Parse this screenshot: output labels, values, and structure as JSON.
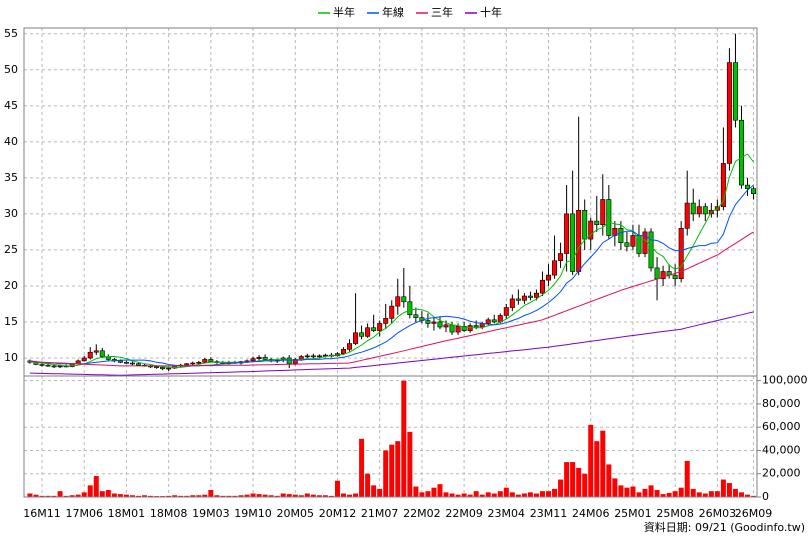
{
  "chart_data": {
    "type": "candlestick",
    "categories": [
      null,
      null,
      "16M11",
      null,
      null,
      null,
      null,
      null,
      null,
      "17M06",
      null,
      null,
      null,
      null,
      null,
      null,
      "18M01",
      null,
      null,
      null,
      null,
      null,
      null,
      "18M08",
      null,
      null,
      null,
      null,
      null,
      null,
      "19M03",
      null,
      null,
      null,
      null,
      null,
      null,
      "19M10",
      null,
      null,
      null,
      null,
      null,
      null,
      "20M05",
      null,
      null,
      null,
      null,
      null,
      null,
      "20M12",
      null,
      null,
      null,
      null,
      null,
      null,
      "21M07",
      null,
      null,
      null,
      null,
      null,
      null,
      "22M02",
      null,
      null,
      null,
      null,
      null,
      null,
      "22M09",
      null,
      null,
      null,
      null,
      null,
      null,
      "23M04",
      null,
      null,
      null,
      null,
      null,
      null,
      "23M11",
      null,
      null,
      null,
      null,
      null,
      null,
      "24M06",
      null,
      null,
      null,
      null,
      null,
      null,
      "25M01",
      null,
      null,
      null,
      null,
      null,
      null,
      "25M08",
      null,
      null,
      null,
      null,
      null,
      null,
      "26M03",
      null,
      null,
      null,
      null,
      null,
      "26M09"
    ],
    "open": [
      9.6,
      9.4,
      9.1,
      9.0,
      8.9,
      8.8,
      8.9,
      8.8,
      9.2,
      9.6,
      10.0,
      10.8,
      11.0,
      10.2,
      9.8,
      9.6,
      9.4,
      9.3,
      9.2,
      9.0,
      8.9,
      8.8,
      8.7,
      8.5,
      8.6,
      8.9,
      9.0,
      9.2,
      9.3,
      9.4,
      9.8,
      9.5,
      9.4,
      9.3,
      9.4,
      9.3,
      9.5,
      9.6,
      9.9,
      10.1,
      9.8,
      9.6,
      9.7,
      10.0,
      9.2,
      9.8,
      10.2,
      10.3,
      10.2,
      10.3,
      10.4,
      10.3,
      10.6,
      11.2,
      12.0,
      13.5,
      13.0,
      14.2,
      13.8,
      14.8,
      15.5,
      17.2,
      18.5,
      17.8,
      16.0,
      15.6,
      15.2,
      14.8,
      15.0,
      14.3,
      14.6,
      13.6,
      14.4,
      13.8,
      14.5,
      14.3,
      14.8,
      15.3,
      15.0,
      15.9,
      17.0,
      18.2,
      18.0,
      18.6,
      18.4,
      19.0,
      20.8,
      21.5,
      23.5,
      24.5,
      30.0,
      22.0,
      30.5,
      26.5,
      29.0,
      28.5,
      32.0,
      27.0,
      28.0,
      26.0,
      25.5,
      27.0,
      24.5,
      27.5,
      22.5,
      21.0,
      22.0,
      21.5,
      21.0,
      28.0,
      31.5,
      30.0,
      31.0,
      30.0,
      30.5,
      31.0,
      37.0,
      51.0,
      43.0,
      34.0,
      33.5
    ],
    "high": [
      9.8,
      9.6,
      9.3,
      9.2,
      9.1,
      9.0,
      9.1,
      9.3,
      9.8,
      10.3,
      11.5,
      11.9,
      11.4,
      10.5,
      10.0,
      9.8,
      9.6,
      9.5,
      9.4,
      9.2,
      9.1,
      9.0,
      8.9,
      8.8,
      9.0,
      9.2,
      9.3,
      9.5,
      9.6,
      10.0,
      10.1,
      9.7,
      9.6,
      9.6,
      9.6,
      9.6,
      9.8,
      10.2,
      10.4,
      10.5,
      10.0,
      9.9,
      10.2,
      10.4,
      10.0,
      10.4,
      10.6,
      10.6,
      10.5,
      10.6,
      10.7,
      10.8,
      11.5,
      12.6,
      19.0,
      14.5,
      14.8,
      16.0,
      15.2,
      17.5,
      18.0,
      21.0,
      22.5,
      20.0,
      17.0,
      16.5,
      16.2,
      15.6,
      15.8,
      15.2,
      15.0,
      14.8,
      15.0,
      14.8,
      15.2,
      15.0,
      15.6,
      16.0,
      16.2,
      17.5,
      18.8,
      19.5,
      19.0,
      19.2,
      19.5,
      22.0,
      23.0,
      27.0,
      26.0,
      34.0,
      36.0,
      43.5,
      32.0,
      29.5,
      32.5,
      35.5,
      34.0,
      29.0,
      29.0,
      27.5,
      28.5,
      28.5,
      28.0,
      28.0,
      24.0,
      22.8,
      23.0,
      23.0,
      29.0,
      36.0,
      33.5,
      32.0,
      31.5,
      31.5,
      32.0,
      42.0,
      53.0,
      55.0,
      45.0,
      35.0,
      33.8
    ],
    "low": [
      9.2,
      9.0,
      8.8,
      8.8,
      8.6,
      8.6,
      8.7,
      8.7,
      9.1,
      9.5,
      9.8,
      10.4,
      10.0,
      9.6,
      9.4,
      9.3,
      9.2,
      9.0,
      8.9,
      8.8,
      8.6,
      8.5,
      8.3,
      8.2,
      8.5,
      8.7,
      8.8,
      9.0,
      9.1,
      9.3,
      9.4,
      9.2,
      9.1,
      9.1,
      9.2,
      9.1,
      9.3,
      9.4,
      9.6,
      9.7,
      9.4,
      9.3,
      9.4,
      8.6,
      9.0,
      9.6,
      10.0,
      10.0,
      9.9,
      10.1,
      10.1,
      10.2,
      10.4,
      10.9,
      11.8,
      12.6,
      12.8,
      13.6,
      13.0,
      14.0,
      14.8,
      16.0,
      17.0,
      15.5,
      15.0,
      14.8,
      14.2,
      13.8,
      14.0,
      13.6,
      13.2,
      13.2,
      13.6,
      13.5,
      14.0,
      14.0,
      14.4,
      14.8,
      14.8,
      15.4,
      16.5,
      17.4,
      17.5,
      18.0,
      18.0,
      18.6,
      20.0,
      21.0,
      22.5,
      22.0,
      21.5,
      21.5,
      25.0,
      25.0,
      27.5,
      27.0,
      26.5,
      25.5,
      25.0,
      24.8,
      25.0,
      24.0,
      24.0,
      22.0,
      18.0,
      20.0,
      21.0,
      20.0,
      20.5,
      27.0,
      29.0,
      29.5,
      29.0,
      29.5,
      29.5,
      30.5,
      36.0,
      42.0,
      33.5,
      32.5,
      32.0
    ],
    "close": [
      9.4,
      9.1,
      9.0,
      8.9,
      8.8,
      8.9,
      8.8,
      9.2,
      9.6,
      10.0,
      10.8,
      11.0,
      10.2,
      9.8,
      9.6,
      9.4,
      9.3,
      9.2,
      9.0,
      8.9,
      8.8,
      8.7,
      8.5,
      8.6,
      8.9,
      9.0,
      9.2,
      9.3,
      9.4,
      9.8,
      9.5,
      9.4,
      9.3,
      9.4,
      9.3,
      9.5,
      9.6,
      9.9,
      10.1,
      9.8,
      9.6,
      9.7,
      10.0,
      9.2,
      9.8,
      10.2,
      10.3,
      10.2,
      10.3,
      10.4,
      10.3,
      10.6,
      11.2,
      12.0,
      13.5,
      13.0,
      14.2,
      13.8,
      14.8,
      15.5,
      17.2,
      18.5,
      17.8,
      16.0,
      15.6,
      15.2,
      14.8,
      15.0,
      14.3,
      14.6,
      13.6,
      14.4,
      13.8,
      14.5,
      14.3,
      14.8,
      15.3,
      15.0,
      15.9,
      17.0,
      18.2,
      18.0,
      18.6,
      18.4,
      19.0,
      20.8,
      21.5,
      23.5,
      24.5,
      30.0,
      22.0,
      30.5,
      26.5,
      29.0,
      28.5,
      32.0,
      27.0,
      28.0,
      26.0,
      25.5,
      27.0,
      24.5,
      27.5,
      22.5,
      21.0,
      22.0,
      21.5,
      21.0,
      28.0,
      31.5,
      30.0,
      31.0,
      30.0,
      30.5,
      31.0,
      37.0,
      51.0,
      43.0,
      34.0,
      33.5,
      32.8
    ],
    "up_color": "#ff0000",
    "down_color": "#00c000",
    "ylim": [
      7.5,
      55.8
    ],
    "yticks": [
      10,
      15,
      20,
      25,
      30,
      35,
      40,
      45,
      50,
      55
    ],
    "grid": true,
    "legend": "top",
    "series": [
      {
        "name": "半年",
        "color": "#00c000",
        "values": [
          9.5,
          9.4,
          9.3,
          9.2,
          9.1,
          9.0,
          8.9,
          8.9,
          9.0,
          9.2,
          9.5,
          9.9,
          10.1,
          10.2,
          10.2,
          10.1,
          9.9,
          9.6,
          9.4,
          9.2,
          9.1,
          8.9,
          8.8,
          8.7,
          8.7,
          8.7,
          8.8,
          8.9,
          9.1,
          9.3,
          9.4,
          9.4,
          9.4,
          9.4,
          9.4,
          9.4,
          9.4,
          9.5,
          9.6,
          9.7,
          9.7,
          9.8,
          9.9,
          9.7,
          9.7,
          9.8,
          9.9,
          9.9,
          10.0,
          10.2,
          10.3,
          10.4,
          10.5,
          10.8,
          11.3,
          11.8,
          12.4,
          12.9,
          13.6,
          14.1,
          14.8,
          15.7,
          16.3,
          16.6,
          16.8,
          16.7,
          16.4,
          15.7,
          15.2,
          14.9,
          14.6,
          14.5,
          14.3,
          14.2,
          14.2,
          14.2,
          14.5,
          14.6,
          15.0,
          15.4,
          16.0,
          16.6,
          17.3,
          17.7,
          18.2,
          18.8,
          19.4,
          20.3,
          21.4,
          23.3,
          23.6,
          25.3,
          26.4,
          27.1,
          27.8,
          28.1,
          28.9,
          28.6,
          28.5,
          27.8,
          27.7,
          26.3,
          26.4,
          25.5,
          24.6,
          24.1,
          22.9,
          22.3,
          22.7,
          24.2,
          25.6,
          27.2,
          28.7,
          30.3,
          30.7,
          31.8,
          35.1,
          37.3,
          37.8,
          38.3,
          37.2
        ]
      },
      {
        "name": "年線",
        "color": "#0050ff",
        "values": [
          9.6,
          9.5,
          9.4,
          9.3,
          9.3,
          9.2,
          9.2,
          9.2,
          9.2,
          9.2,
          9.3,
          9.4,
          9.5,
          9.6,
          9.6,
          9.7,
          9.7,
          9.7,
          9.7,
          9.7,
          9.6,
          9.4,
          9.3,
          9.1,
          9.0,
          8.9,
          8.9,
          8.9,
          8.9,
          9.0,
          9.0,
          9.1,
          9.2,
          9.2,
          9.3,
          9.4,
          9.4,
          9.5,
          9.5,
          9.6,
          9.6,
          9.6,
          9.7,
          9.7,
          9.7,
          9.7,
          9.8,
          9.8,
          9.8,
          9.9,
          9.9,
          10.0,
          10.1,
          10.3,
          10.6,
          10.8,
          11.1,
          11.4,
          11.8,
          12.2,
          12.8,
          13.5,
          14.0,
          14.5,
          14.9,
          15.2,
          15.5,
          15.6,
          15.7,
          15.8,
          15.7,
          15.6,
          15.4,
          15.1,
          14.9,
          14.8,
          14.7,
          14.6,
          14.7,
          14.9,
          15.2,
          15.5,
          15.9,
          16.2,
          16.6,
          17.1,
          17.7,
          18.4,
          19.2,
          20.4,
          21.0,
          22.1,
          23.1,
          24.0,
          24.9,
          26.0,
          26.5,
          27.1,
          27.4,
          27.6,
          27.6,
          27.0,
          27.0,
          26.4,
          26.3,
          25.9,
          25.3,
          24.9,
          24.9,
          25.2,
          25.4,
          25.6,
          25.6,
          25.9,
          26.0,
          27.2,
          29.6,
          31.3,
          32.3,
          33.3,
          34.0
        ]
      },
      {
        "name": "三年",
        "color": "#e0105a",
        "values": [
          9.5,
          9.46,
          9.42,
          9.38,
          9.34,
          9.3,
          9.26,
          9.22,
          9.18,
          9.14,
          9.1,
          9.06,
          9.02,
          8.98,
          8.94,
          8.9,
          8.9,
          8.9,
          8.9,
          8.9,
          8.9,
          8.9,
          8.9,
          8.9,
          8.9,
          8.9,
          8.95,
          8.95,
          8.95,
          8.95,
          8.95,
          8.95,
          9.0,
          9.0,
          9.0,
          9.0,
          9.0,
          9.02,
          9.04,
          9.05,
          9.07,
          9.09,
          9.11,
          9.12,
          9.14,
          9.16,
          9.18,
          9.19,
          9.21,
          9.23,
          9.25,
          9.26,
          9.28,
          9.3,
          9.49,
          9.68,
          9.86,
          10.05,
          10.24,
          10.43,
          10.61,
          10.8,
          11.0,
          11.2,
          11.4,
          11.6,
          11.8,
          12.0,
          12.2,
          12.38,
          12.56,
          12.75,
          12.93,
          13.11,
          13.29,
          13.47,
          13.66,
          13.84,
          14.02,
          14.2,
          14.38,
          14.57,
          14.75,
          14.93,
          15.11,
          15.3,
          15.62,
          15.93,
          16.25,
          16.56,
          16.88,
          17.19,
          17.51,
          17.82,
          18.14,
          18.45,
          18.77,
          19.08,
          19.4,
          19.66,
          19.92,
          20.18,
          20.44,
          20.7,
          20.96,
          21.22,
          21.48,
          21.74,
          22.0,
          22.38,
          22.77,
          23.15,
          23.53,
          23.92,
          24.3,
          24.83,
          25.37,
          25.9,
          26.43,
          26.97,
          27.5
        ]
      },
      {
        "name": "十年",
        "color": "#8000c0",
        "values": [
          7.9,
          7.88,
          7.86,
          7.84,
          7.82,
          7.8,
          7.78,
          7.76,
          7.74,
          7.72,
          7.7,
          7.68,
          7.66,
          7.64,
          7.62,
          7.6,
          7.62,
          7.65,
          7.67,
          7.7,
          7.72,
          7.74,
          7.77,
          7.79,
          7.81,
          7.84,
          7.86,
          7.89,
          7.91,
          7.93,
          7.96,
          7.98,
          8.0,
          8.03,
          8.05,
          8.08,
          8.1,
          8.13,
          8.16,
          8.19,
          8.22,
          8.25,
          8.28,
          8.31,
          8.34,
          8.37,
          8.4,
          8.43,
          8.46,
          8.49,
          8.52,
          8.54,
          8.57,
          8.6,
          8.69,
          8.78,
          8.86,
          8.95,
          9.04,
          9.13,
          9.21,
          9.3,
          9.39,
          9.48,
          9.57,
          9.65,
          9.74,
          9.83,
          9.92,
          10.01,
          10.1,
          10.19,
          10.28,
          10.36,
          10.45,
          10.54,
          10.63,
          10.71,
          10.8,
          10.89,
          10.98,
          11.06,
          11.15,
          11.24,
          11.33,
          11.41,
          11.5,
          11.62,
          11.73,
          11.85,
          11.97,
          12.08,
          12.2,
          12.32,
          12.43,
          12.55,
          12.67,
          12.78,
          12.9,
          13.01,
          13.12,
          13.23,
          13.34,
          13.45,
          13.56,
          13.67,
          13.78,
          13.89,
          14.0,
          14.2,
          14.4,
          14.6,
          14.8,
          15.0,
          15.2,
          15.4,
          15.6,
          15.8,
          16.0,
          16.2,
          16.4
        ]
      }
    ],
    "volume": {
      "color": "#ff0000",
      "values": [
        3000,
        2000,
        1000,
        1000,
        1000,
        5000,
        1000,
        1500,
        2000,
        4000,
        10000,
        18000,
        5000,
        6000,
        3000,
        2500,
        2000,
        1500,
        1000,
        1500,
        1000,
        800,
        800,
        1000,
        1500,
        1000,
        1000,
        1500,
        1500,
        2000,
        6000,
        1500,
        1000,
        1000,
        1000,
        1500,
        2000,
        3000,
        2500,
        2000,
        1500,
        1000,
        3000,
        2500,
        2000,
        1500,
        3000,
        2000,
        1500,
        1500,
        1000,
        14000,
        3000,
        2000,
        3000,
        50000,
        20000,
        10000,
        7000,
        40000,
        45000,
        48000,
        100000,
        56000,
        9000,
        4000,
        5000,
        8000,
        11000,
        4000,
        3000,
        2000,
        3000,
        2000,
        5000,
        2000,
        4000,
        3000,
        5000,
        8000,
        4000,
        2000,
        3000,
        4000,
        3000,
        5000,
        5000,
        7000,
        15000,
        30000,
        30000,
        25000,
        20000,
        62000,
        48000,
        57000,
        28000,
        16000,
        10000,
        8000,
        9000,
        4000,
        7000,
        10000,
        6000,
        2500,
        3500,
        5000,
        8000,
        31000,
        7000,
        4000,
        3000,
        5000,
        5000,
        15000,
        12000,
        7000,
        4000,
        2000,
        1000
      ],
      "ylim": [
        0,
        104000
      ],
      "yticks": [
        0,
        {
          "value": 20000,
          "label": "20,000"
        },
        {
          "value": 40000,
          "label": "40,000"
        },
        {
          "value": 60000,
          "label": "60,000"
        },
        {
          "value": 80000,
          "label": "80,000"
        },
        {
          "value": 100000,
          "label": "100,000"
        }
      ]
    },
    "source": "資料日期: 09/21 (Goodinfo.tw)"
  }
}
